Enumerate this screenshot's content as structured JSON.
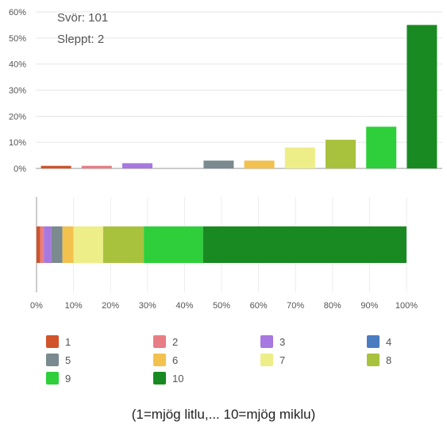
{
  "stats": {
    "responses": "Svör: 101",
    "skipped": "Sleppt: 2"
  },
  "caption": "(1=mjög litlu,... 10=mjög miklu)",
  "chart_data": [
    {
      "type": "bar",
      "categories": [
        "1",
        "2",
        "3",
        "4",
        "5",
        "6",
        "7",
        "8",
        "9",
        "10"
      ],
      "values": [
        1,
        1,
        2,
        0,
        3,
        3,
        8,
        11,
        16,
        55
      ],
      "ylim": [
        0,
        60
      ],
      "yticks": [
        "0%",
        "10%",
        "20%",
        "30%",
        "40%",
        "50%",
        "60%"
      ],
      "grid": true
    },
    {
      "type": "stacked-bar",
      "categories": [
        "1",
        "2",
        "3",
        "4",
        "5",
        "6",
        "7",
        "8",
        "9",
        "10"
      ],
      "values": [
        1,
        1,
        2,
        0,
        3,
        3,
        8,
        11,
        16,
        55
      ],
      "xlim": [
        0,
        100
      ],
      "xticks": [
        "0%",
        "10%",
        "20%",
        "30%",
        "40%",
        "50%",
        "60%",
        "70%",
        "80%",
        "90%",
        "100%"
      ]
    }
  ],
  "legend": {
    "placement": "bottom",
    "items": [
      {
        "label": "1",
        "color": "#d0532a"
      },
      {
        "label": "2",
        "color": "#e87d85"
      },
      {
        "label": "3",
        "color": "#a678e0"
      },
      {
        "label": "4",
        "color": "#4a7cc0"
      },
      {
        "label": "5",
        "color": "#7a8a8e"
      },
      {
        "label": "6",
        "color": "#f2c14e"
      },
      {
        "label": "7",
        "color": "#eeee88"
      },
      {
        "label": "8",
        "color": "#a8c23e"
      },
      {
        "label": "9",
        "color": "#2ecf3a"
      },
      {
        "label": "10",
        "color": "#198a22"
      }
    ]
  }
}
